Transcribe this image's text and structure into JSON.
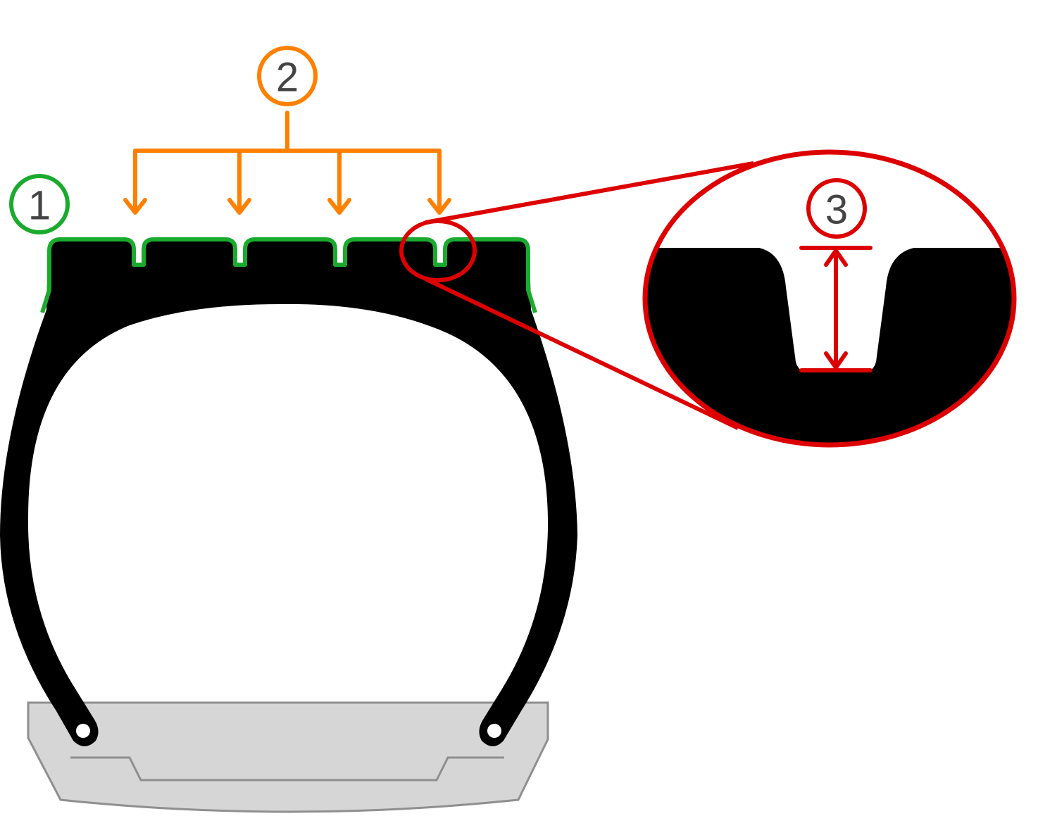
{
  "callouts": [
    {
      "id": "tread-surface",
      "number": "1",
      "color": "#1aab2e"
    },
    {
      "id": "tread-grooves",
      "number": "2",
      "color": "#ff8000"
    },
    {
      "id": "groove-depth",
      "number": "3",
      "color": "#dd0000"
    }
  ],
  "colors": {
    "tire": "#000000",
    "rim_fill": "#d6d6d6",
    "rim_stroke": "#8f8f8f",
    "tread_outline": "#1aab2e",
    "groove_arrows": "#ff8000",
    "magnifier": "#dd0000"
  }
}
